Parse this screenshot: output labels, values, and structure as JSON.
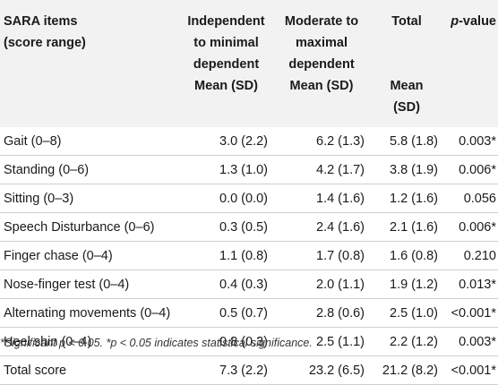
{
  "table": {
    "headers": [
      {
        "line1": "SARA items",
        "line2": "(score range)",
        "line3": "",
        "line4": ""
      },
      {
        "line1": "Independent",
        "line2": "to minimal",
        "line3": "dependent",
        "line4": "Mean (SD)"
      },
      {
        "line1": "Moderate to",
        "line2": "maximal",
        "line3": "dependent",
        "line4": "Mean (SD)"
      },
      {
        "line1": "Total",
        "line2": "",
        "line3": "",
        "line4": "Mean (SD)"
      },
      {
        "line1": "p",
        "line1_suffix": "-value"
      }
    ],
    "rows": [
      {
        "item": "Gait (0–8)",
        "ind": "3.0 (2.2)",
        "mod": "6.2 (1.3)",
        "total": "5.8 (1.8)",
        "p": "0.003*"
      },
      {
        "item": "Standing (0–6)",
        "ind": "1.3 (1.0)",
        "mod": "4.2 (1.7)",
        "total": "3.8 (1.9)",
        "p": "0.006*"
      },
      {
        "item": "Sitting (0–3)",
        "ind": "0.0 (0.0)",
        "mod": "1.4 (1.6)",
        "total": "1.2 (1.6)",
        "p": "0.056"
      },
      {
        "item": "Speech Disturbance (0–6)",
        "ind": "0.3 (0.5)",
        "mod": "2.4 (1.6)",
        "total": "2.1 (1.6)",
        "p": "0.006*"
      },
      {
        "item": "Finger chase (0–4)",
        "ind": "1.1 (0.8)",
        "mod": "1.7 (0.8)",
        "total": "1.6 (0.8)",
        "p": "0.210"
      },
      {
        "item": "Nose-finger test (0–4)",
        "ind": "0.4 (0.3)",
        "mod": "2.0 (1.1)",
        "total": "1.9 (1.2)",
        "p": "0.013*"
      },
      {
        "item": "Alternating movements (0–4)",
        "ind": "0.5 (0.7)",
        "mod": "2.8 (0.6)",
        "total": "2.5 (1.0)",
        "p": "<0.001*"
      },
      {
        "item": "Heel shin (0–4)",
        "ind": "0.8 (0.3)",
        "mod": "2.5 (1.1)",
        "total": "2.2 (1.2)",
        "p": "0.003*"
      },
      {
        "item": "Total score",
        "ind": "7.3 (2.2)",
        "mod": "23.2 (6.5)",
        "total": "21.2 (8.2)",
        "p": "<0.001*"
      }
    ]
  },
  "footnote": "*Significant p < 0.05. *p < 0.05 indicates statistical significance."
}
